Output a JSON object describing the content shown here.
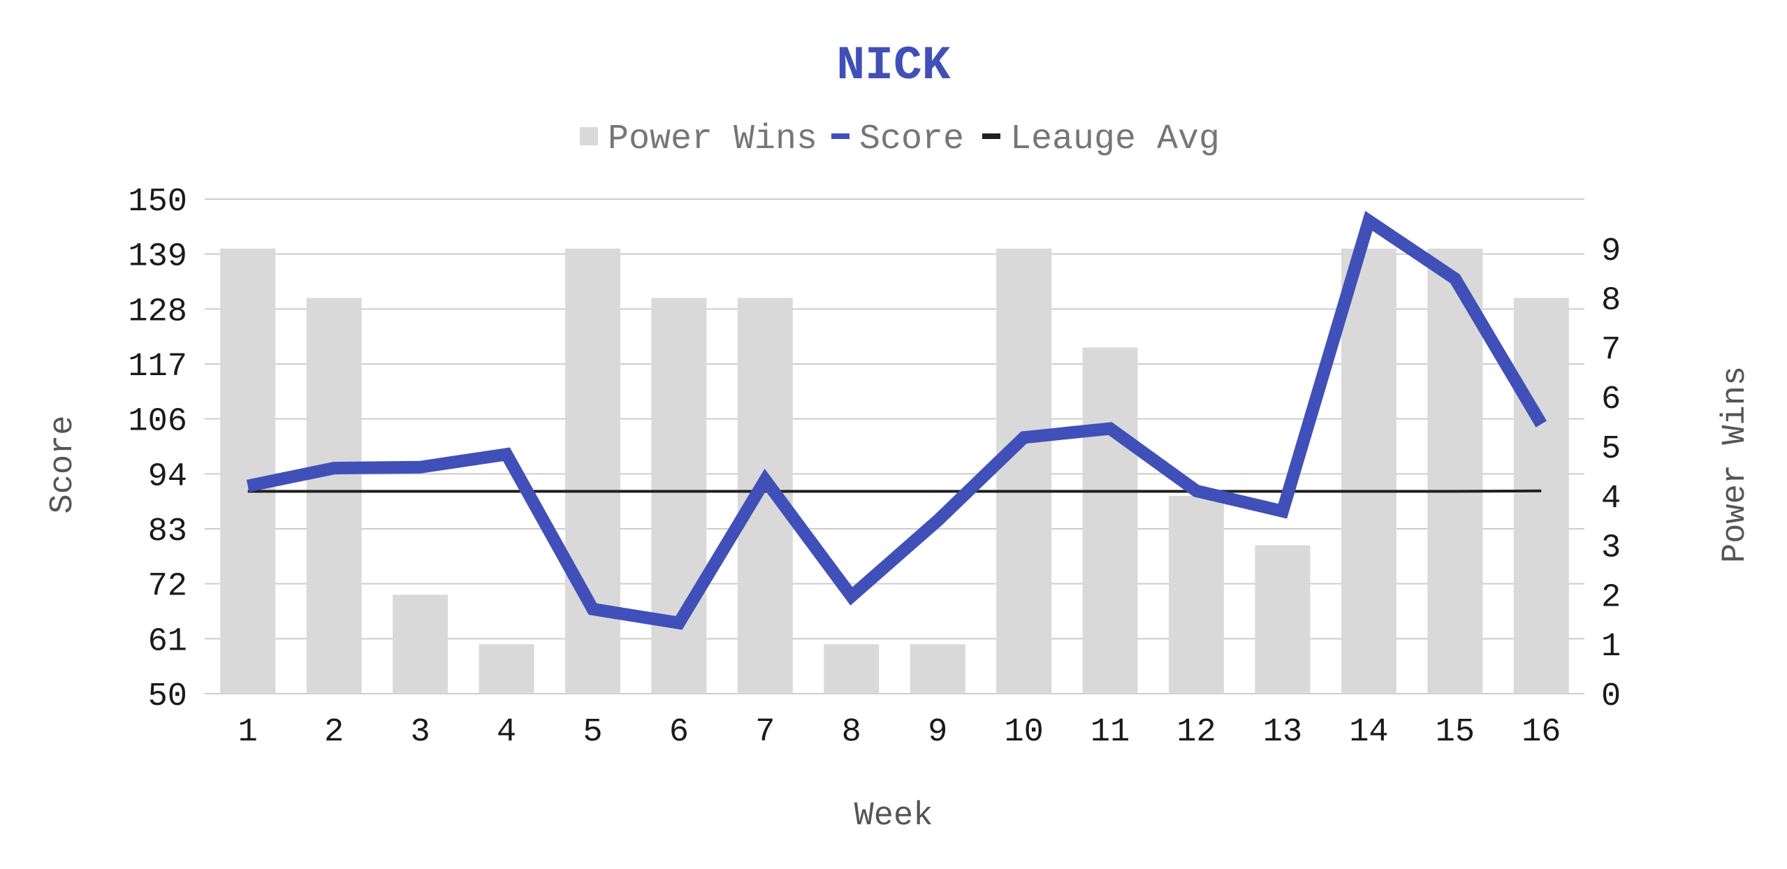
{
  "chart_data": {
    "type": "bar",
    "title": "NICK",
    "xlabel": "Week",
    "ylabel": "Score",
    "y2label": "Power Wins",
    "categories": [
      "1",
      "2",
      "3",
      "4",
      "5",
      "6",
      "7",
      "8",
      "9",
      "10",
      "11",
      "12",
      "13",
      "14",
      "15",
      "16"
    ],
    "ylim": [
      50,
      150
    ],
    "yticks": [
      "50",
      "61",
      "72",
      "83",
      "94",
      "106",
      "117",
      "128",
      "139",
      "150"
    ],
    "y2lim": [
      0,
      10
    ],
    "y2ticks": [
      "0",
      "1",
      "2",
      "3",
      "4",
      "5",
      "6",
      "7",
      "8",
      "9"
    ],
    "grid": true,
    "legend_position": "top",
    "series": [
      {
        "name": "Power Wins",
        "type": "bar",
        "axis": "right",
        "color": "#d9d9d9",
        "values": [
          9,
          8,
          2,
          1,
          9,
          8,
          8,
          1,
          1,
          9,
          7,
          4,
          3,
          9,
          9,
          8
        ]
      },
      {
        "name": "Score",
        "type": "line",
        "axis": "left",
        "color": "#4050b8",
        "values": [
          92.0,
          95.6,
          95.8,
          98.4,
          67.1,
          64.3,
          93.2,
          69.7,
          85.0,
          101.8,
          103.6,
          91.0,
          86.9,
          145.6,
          133.9,
          104.5
        ]
      },
      {
        "name": "Leauge Avg",
        "type": "line",
        "axis": "left",
        "color": "#1f1f1f",
        "values": [
          90.9,
          90.9,
          90.9,
          90.9,
          90.9,
          90.9,
          90.9,
          90.9,
          90.9,
          90.9,
          90.9,
          90.9,
          90.9,
          90.9,
          90.9,
          91.0
        ]
      }
    ]
  }
}
